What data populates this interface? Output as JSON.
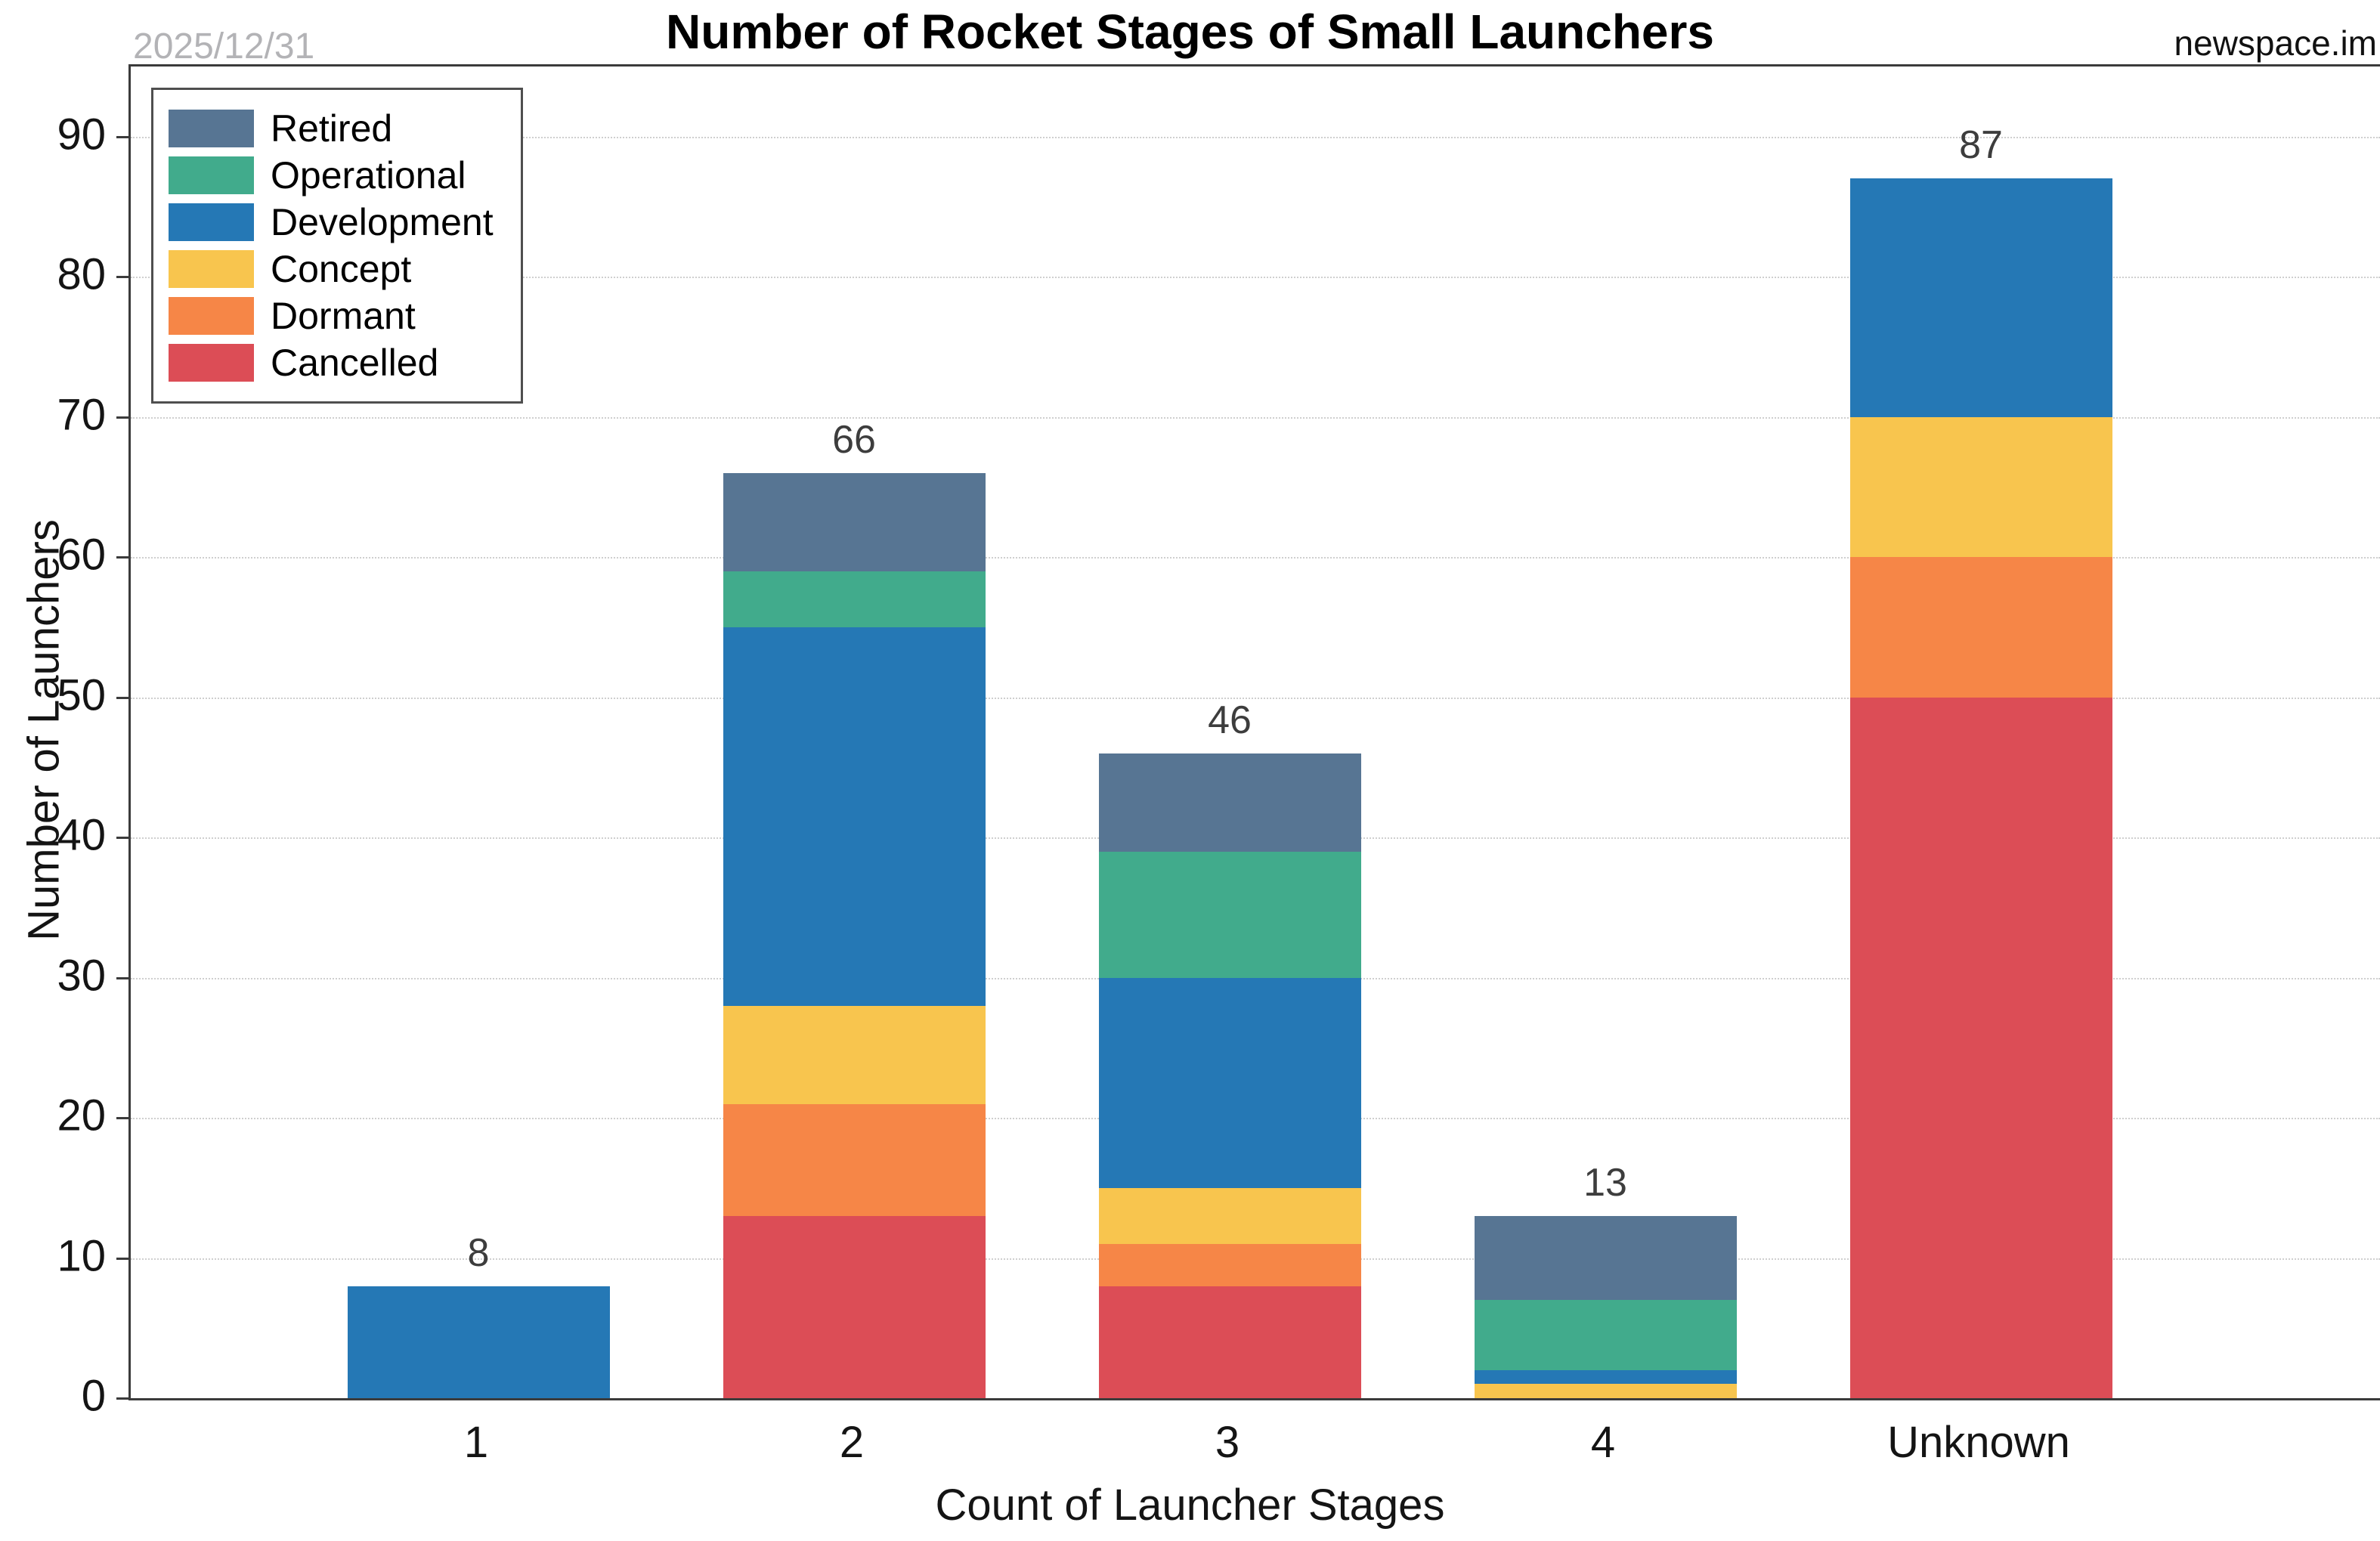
{
  "header": {
    "title": "Number of Rocket Stages of Small Launchers",
    "date_annotation": "2025/12/31",
    "watermark": "newspace.im"
  },
  "chart_data": {
    "type": "bar",
    "stacked": true,
    "title": "Number of Rocket Stages of Small Launchers",
    "xlabel": "Count of Launcher Stages",
    "ylabel": "Number of Launchers",
    "categories": [
      "1",
      "2",
      "3",
      "4",
      "Unknown"
    ],
    "series": [
      {
        "name": "Cancelled",
        "color": "#dc4d56",
        "values": [
          0,
          13,
          8,
          0,
          50
        ]
      },
      {
        "name": "Dormant",
        "color": "#f68647",
        "values": [
          0,
          8,
          3,
          0,
          10
        ]
      },
      {
        "name": "Concept",
        "color": "#f8c54e",
        "values": [
          0,
          7,
          4,
          1,
          10
        ]
      },
      {
        "name": "Development",
        "color": "#2578b5",
        "values": [
          8,
          27,
          15,
          1,
          17
        ]
      },
      {
        "name": "Operational",
        "color": "#41ab8c",
        "values": [
          0,
          4,
          9,
          5,
          0
        ]
      },
      {
        "name": "Retired",
        "color": "#577593",
        "values": [
          0,
          7,
          7,
          6,
          0
        ]
      }
    ],
    "totals": [
      8,
      66,
      46,
      13,
      87
    ],
    "legend_order": [
      "Retired",
      "Operational",
      "Development",
      "Concept",
      "Dormant",
      "Cancelled"
    ],
    "y_ticks": [
      0,
      10,
      20,
      30,
      40,
      50,
      60,
      70,
      80,
      90
    ],
    "ylim": [
      0,
      95
    ],
    "grid": "horizontal-dotted",
    "legend_position": "upper-left"
  },
  "styles": {
    "grid_color": "#cfcfcf",
    "spine_color": "#3b3b3b",
    "total_label_color": "#3d3d3d",
    "tick_label_color": "#141414",
    "date_color": "#b3b3b6"
  }
}
